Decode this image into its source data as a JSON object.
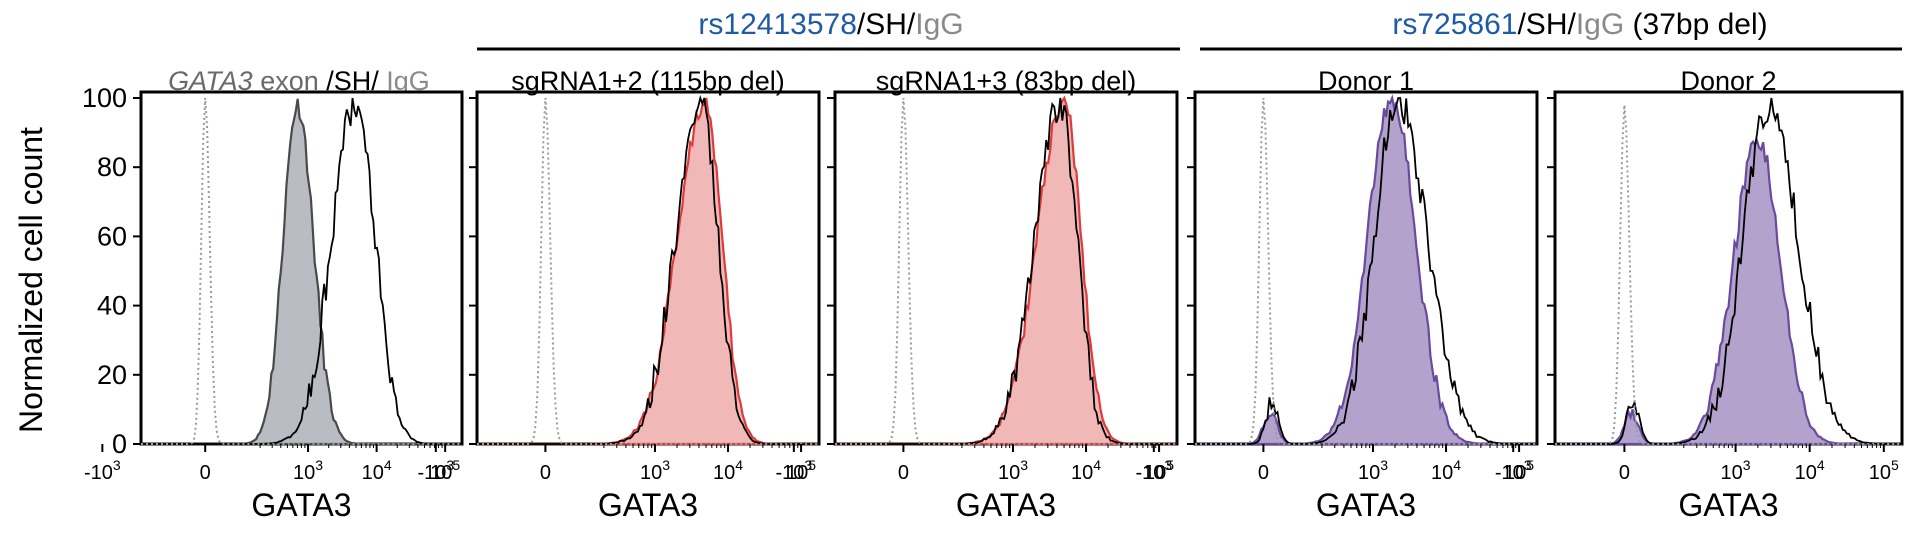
{
  "colors": {
    "blue": "#1f5aa6",
    "gray_text": "#8a8a8a",
    "igg_line": "#9a9a9a",
    "sh_line": "#000000",
    "gray_fill": "#b9bcc2",
    "gray_edge": "#4a4a4a",
    "red_fill": "#f1b8b8",
    "red_edge": "#e03a3a",
    "purple_fill": "#b3a3cc",
    "purple_edge": "#6a4a9e"
  },
  "groups": [
    {
      "title_a": "rs12413578",
      "title_b": "/SH/",
      "title_c": "IgG",
      "title_d": ""
    },
    {
      "title_a": "rs725861",
      "title_b": "/SH/",
      "title_c": "IgG",
      "title_d": " (37bp del)"
    }
  ],
  "legend_panel1": {
    "gene": "GATA3",
    "rest": " exon ",
    "sh": "/SH/ ",
    "igg": "IgG"
  },
  "ylabel": "Normalized cell count",
  "xlabel": "GATA3",
  "xtick_labels": [
    "-10",
    "0",
    "10",
    "10",
    "10"
  ],
  "xtick_exps": [
    "3",
    "",
    "3",
    "4",
    "5"
  ],
  "ytick_labels": [
    "0",
    "20",
    "40",
    "60",
    "80",
    "100"
  ],
  "chart_data": [
    {
      "type": "area",
      "title": "",
      "fill": "gray",
      "ylim": [
        0,
        100
      ],
      "x_scale": "biexponential",
      "x_ticks": [
        "-10^3",
        "0",
        "10^3",
        "10^4",
        "10^5"
      ],
      "series": [
        {
          "role": "IgG",
          "style": "dotted",
          "peak_x": 0,
          "peak_y": 100
        },
        {
          "role": "edited",
          "style": "filled",
          "peak_x": 700,
          "peak_y": 98
        },
        {
          "role": "SH",
          "style": "line",
          "peak_x": 5000,
          "peak_y": 99
        }
      ]
    },
    {
      "type": "area",
      "title": "sgRNA1+2 (115bp del)",
      "fill": "red",
      "ylim": [
        0,
        100
      ],
      "x_scale": "biexponential",
      "x_ticks": [
        "-10^3",
        "0",
        "10^3",
        "10^4",
        "10^5"
      ],
      "series": [
        {
          "role": "IgG",
          "style": "dotted",
          "peak_x": 0,
          "peak_y": 100
        },
        {
          "role": "edited",
          "style": "filled",
          "peak_x": 4800,
          "peak_y": 99
        },
        {
          "role": "SH",
          "style": "line",
          "peak_x": 4300,
          "peak_y": 99
        }
      ]
    },
    {
      "type": "area",
      "title": "sgRNA1+3 (83bp del)",
      "fill": "red",
      "ylim": [
        0,
        100
      ],
      "x_scale": "biexponential",
      "x_ticks": [
        "-10^3",
        "0",
        "10^3",
        "10^4",
        "10^5"
      ],
      "series": [
        {
          "role": "IgG",
          "style": "dotted",
          "peak_x": 0,
          "peak_y": 100
        },
        {
          "role": "edited",
          "style": "filled",
          "peak_x": 5000,
          "peak_y": 99
        },
        {
          "role": "SH",
          "style": "line",
          "peak_x": 4400,
          "peak_y": 98
        }
      ]
    },
    {
      "type": "area",
      "title": "Donor 1",
      "fill": "purple",
      "ylim": [
        0,
        100
      ],
      "x_scale": "biexponential",
      "x_ticks": [
        "-10^3",
        "0",
        "10^3",
        "10^4",
        "10^5"
      ],
      "series": [
        {
          "role": "IgG",
          "style": "dotted",
          "peak_x": 0,
          "peak_y": 100
        },
        {
          "role": "edited",
          "style": "filled",
          "peak_x": 1800,
          "peak_y": 100
        },
        {
          "role": "SH",
          "style": "line",
          "peak_x": 2200,
          "peak_y": 99
        }
      ]
    },
    {
      "type": "area",
      "title": "Donor 2",
      "fill": "purple",
      "ylim": [
        0,
        100
      ],
      "x_scale": "biexponential",
      "x_ticks": [
        "-10^3",
        "0",
        "10^3",
        "10^4",
        "10^5"
      ],
      "series": [
        {
          "role": "IgG",
          "style": "dotted",
          "peak_x": 0,
          "peak_y": 98
        },
        {
          "role": "edited",
          "style": "filled",
          "peak_x": 2000,
          "peak_y": 88
        },
        {
          "role": "SH",
          "style": "line",
          "peak_x": 2800,
          "peak_y": 98
        }
      ]
    }
  ]
}
